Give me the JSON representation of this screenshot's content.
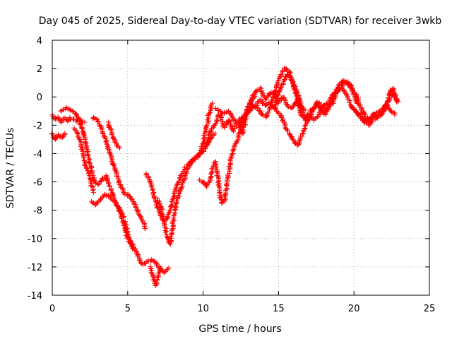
{
  "chart_data": {
    "type": "scatter",
    "title": "Day 045 of 2025, Sidereal Day-to-day VTEC variation (SDTVAR) for receiver 3wkb",
    "xlabel": "GPS time / hours",
    "ylabel": "SDTVAR / TECUs",
    "xlim": [
      0,
      25
    ],
    "ylim": [
      -14,
      4
    ],
    "xticks": [
      0,
      5,
      10,
      15,
      20,
      25
    ],
    "yticks": [
      -14,
      -12,
      -10,
      -8,
      -6,
      -4,
      -2,
      0,
      2,
      4
    ],
    "grid": true,
    "marker": "+",
    "series": [
      {
        "color": "#ff0000",
        "tracks": [
          {
            "x": [
              0.0,
              0.2,
              0.4,
              0.6,
              0.8,
              0.9
            ],
            "y": [
              -2.6,
              -3.0,
              -2.7,
              -2.9,
              -2.6,
              -2.5
            ]
          },
          {
            "x": [
              0.0,
              0.2,
              0.4,
              0.6,
              0.8,
              1.0,
              1.2,
              1.4,
              1.6,
              1.8,
              2.0,
              2.2
            ],
            "y": [
              -1.3,
              -1.6,
              -1.4,
              -1.8,
              -1.5,
              -1.7,
              -1.5,
              -1.6,
              -1.7,
              -1.6,
              -1.8,
              -1.7
            ]
          },
          {
            "x": [
              0.6,
              0.9,
              1.2,
              1.5,
              1.8,
              2.0,
              2.2,
              2.4,
              2.6,
              2.8,
              3.0,
              3.3,
              3.6,
              3.9,
              4.2,
              4.5,
              4.8,
              5.0,
              5.2,
              5.4
            ],
            "y": [
              -1.0,
              -0.8,
              -0.9,
              -1.1,
              -1.6,
              -2.3,
              -3.2,
              -4.2,
              -5.2,
              -6.0,
              -6.2,
              -5.8,
              -5.6,
              -6.6,
              -7.4,
              -8.2,
              -9.2,
              -10.0,
              -10.4,
              -10.8
            ]
          },
          {
            "x": [
              1.5,
              1.8,
              2.0,
              2.2,
              2.4,
              2.6,
              2.8
            ],
            "y": [
              -2.2,
              -3.0,
              -3.8,
              -4.8,
              -5.4,
              -6.2,
              -6.8
            ]
          },
          {
            "x": [
              2.7,
              3.0,
              3.3,
              3.6,
              3.9,
              4.2,
              4.5,
              4.8,
              5.1,
              5.4,
              5.7,
              6.0,
              6.2
            ],
            "y": [
              -1.5,
              -1.6,
              -2.4,
              -3.2,
              -4.2,
              -5.2,
              -6.2,
              -6.8,
              -7.0,
              -7.4,
              -8.2,
              -8.8,
              -9.4
            ]
          },
          {
            "x": [
              2.6,
              2.9,
              3.2,
              3.5,
              3.8,
              4.1,
              4.4,
              4.6,
              4.8
            ],
            "y": [
              -7.4,
              -7.6,
              -7.2,
              -6.9,
              -7.0,
              -7.4,
              -7.8,
              -8.2,
              -8.6
            ]
          },
          {
            "x": [
              3.7,
              3.9,
              4.1,
              4.3,
              4.5
            ],
            "y": [
              -1.8,
              -2.4,
              -3.0,
              -3.5,
              -3.6
            ]
          },
          {
            "x": [
              4.8,
              5.0,
              5.2,
              5.4,
              5.6,
              5.8,
              6.0,
              6.2,
              6.4,
              6.6,
              6.8,
              7.0,
              7.2,
              7.4,
              7.6,
              7.8
            ],
            "y": [
              -8.8,
              -9.6,
              -10.2,
              -10.6,
              -11.0,
              -11.6,
              -11.8,
              -11.7,
              -11.6,
              -11.5,
              -11.7,
              -11.9,
              -12.2,
              -12.4,
              -12.2,
              -12.0
            ]
          },
          {
            "x": [
              6.5,
              6.7,
              6.9,
              7.0,
              7.2
            ],
            "y": [
              -12.0,
              -12.8,
              -13.3,
              -12.6,
              -12.0
            ]
          },
          {
            "x": [
              6.2,
              6.4,
              6.6,
              6.8,
              7.0,
              7.2,
              7.4,
              7.6,
              7.8,
              8.0,
              8.2,
              8.4,
              8.6,
              8.8,
              9.0,
              9.2,
              9.4,
              9.6,
              9.8,
              10.0,
              10.2,
              10.4,
              10.6,
              10.8
            ],
            "y": [
              -5.4,
              -5.8,
              -6.4,
              -7.2,
              -7.8,
              -8.4,
              -8.8,
              -8.6,
              -8.0,
              -7.2,
              -6.4,
              -5.9,
              -5.4,
              -5.0,
              -4.8,
              -4.6,
              -4.4,
              -4.3,
              -4.0,
              -3.8,
              -3.5,
              -3.1,
              -2.8,
              -2.5
            ]
          },
          {
            "x": [
              7.0,
              7.2,
              7.4,
              7.6,
              7.8,
              8.0,
              8.2,
              8.4,
              8.6,
              8.8,
              9.0,
              9.2,
              9.4,
              9.6,
              9.8,
              10.0,
              10.2,
              10.4,
              10.6
            ],
            "y": [
              -7.2,
              -7.8,
              -8.8,
              -9.8,
              -10.4,
              -9.0,
              -7.6,
              -6.8,
              -6.2,
              -5.6,
              -5.0,
              -4.6,
              -4.4,
              -4.2,
              -4.0,
              -3.2,
              -2.2,
              -1.2,
              -0.4
            ]
          },
          {
            "x": [
              9.8,
              10.0,
              10.2,
              10.4,
              10.6,
              10.8,
              11.0,
              11.2,
              11.4,
              11.6,
              11.8,
              12.0,
              12.2,
              12.4,
              12.6,
              12.8,
              13.0,
              13.2,
              13.4
            ],
            "y": [
              -5.9,
              -6.0,
              -6.3,
              -6.0,
              -5.2,
              -4.6,
              -5.8,
              -7.5,
              -7.4,
              -6.2,
              -4.6,
              -3.8,
              -3.2,
              -2.6,
              -2.0,
              -1.2,
              -0.6,
              -0.2,
              0.2
            ]
          },
          {
            "x": [
              10.2,
              10.5,
              10.8,
              11.1,
              11.4,
              11.7,
              12.0,
              12.3,
              12.6,
              12.9,
              13.2,
              13.5,
              13.8,
              14.1,
              14.4,
              14.7,
              15.0,
              15.3,
              15.6,
              15.9,
              16.2,
              16.5,
              16.8,
              17.1,
              17.4,
              17.7,
              18.0,
              18.3,
              18.6,
              18.9,
              19.2,
              19.5,
              19.8,
              20.1,
              20.4
            ],
            "y": [
              -3.4,
              -2.4,
              -1.9,
              -1.2,
              -2.2,
              -1.6,
              -2.4,
              -1.8,
              -2.6,
              -1.2,
              -0.4,
              0.4,
              0.6,
              -0.2,
              0.2,
              0.4,
              -0.4,
              0.0,
              -0.6,
              -0.8,
              -0.2,
              -1.2,
              -1.6,
              -1.0,
              -0.8,
              -0.4,
              -1.2,
              -0.6,
              -0.4,
              0.4,
              0.8,
              1.0,
              0.8,
              0.2,
              -0.4
            ]
          },
          {
            "x": [
              10.8,
              11.1,
              11.4,
              11.7,
              12.0,
              12.3,
              12.6,
              12.9,
              13.2,
              13.5,
              13.8,
              14.1,
              14.4,
              14.7,
              15.0,
              15.3,
              15.6,
              15.9,
              16.2,
              16.5,
              16.8
            ],
            "y": [
              -0.8,
              -1.0,
              -1.2,
              -1.0,
              -1.6,
              -1.8,
              -1.4,
              -1.2,
              -0.8,
              -0.6,
              -0.2,
              -0.6,
              -0.4,
              -0.8,
              0.2,
              1.0,
              1.6,
              1.2,
              0.4,
              -0.6,
              -1.0
            ]
          },
          {
            "x": [
              12.4,
              12.7,
              13.0,
              13.3,
              13.6,
              13.9,
              14.2,
              14.5,
              14.8,
              15.1,
              15.4,
              15.7,
              16.0,
              16.3,
              16.6,
              16.9,
              17.2,
              17.5,
              17.8,
              18.1,
              18.4,
              18.7,
              19.0,
              19.3,
              19.6,
              19.9,
              20.2,
              20.5,
              20.8,
              21.1,
              21.4,
              21.7,
              22.0,
              22.3,
              22.6,
              22.9
            ],
            "y": [
              -2.2,
              -1.4,
              -1.0,
              -0.6,
              -0.8,
              -1.2,
              -1.4,
              -0.6,
              0.6,
              1.4,
              2.0,
              1.8,
              0.8,
              -0.4,
              -1.2,
              -1.6,
              -1.2,
              -0.4,
              -0.8,
              -1.2,
              -0.6,
              0.2,
              0.8,
              1.2,
              1.0,
              0.4,
              -0.4,
              -0.8,
              -1.4,
              -1.6,
              -1.2,
              -1.0,
              -0.8,
              -0.2,
              0.2,
              -0.4
            ]
          },
          {
            "x": [
              14.6,
              14.9,
              15.2,
              15.5,
              15.8,
              16.1,
              16.3,
              16.5,
              16.8,
              17.1,
              17.4,
              17.7,
              18.0,
              18.3,
              18.6,
              18.9,
              19.2,
              19.5,
              19.8,
              20.1,
              20.4,
              20.7,
              21.0,
              21.3,
              21.6,
              21.9,
              22.2,
              22.5,
              22.8
            ],
            "y": [
              -0.6,
              -1.0,
              -1.4,
              -2.2,
              -2.8,
              -3.2,
              -3.4,
              -2.8,
              -2.0,
              -1.4,
              -1.6,
              -1.2,
              -0.6,
              -0.4,
              0.2,
              0.4,
              0.6,
              0.2,
              -0.6,
              -1.0,
              -1.4,
              -1.8,
              -1.6,
              -1.2,
              -1.4,
              -1.2,
              -0.6,
              -1.0,
              -1.3
            ]
          },
          {
            "x": [
              19.8,
              20.1,
              20.4,
              20.7,
              21.0,
              21.3,
              21.6,
              21.9,
              22.2,
              22.4,
              22.6,
              22.8,
              22.9
            ],
            "y": [
              -0.6,
              -1.0,
              -1.2,
              -1.6,
              -2.0,
              -1.6,
              -1.4,
              -1.0,
              -0.4,
              0.4,
              0.6,
              0.0,
              -0.4
            ]
          }
        ]
      }
    ]
  }
}
